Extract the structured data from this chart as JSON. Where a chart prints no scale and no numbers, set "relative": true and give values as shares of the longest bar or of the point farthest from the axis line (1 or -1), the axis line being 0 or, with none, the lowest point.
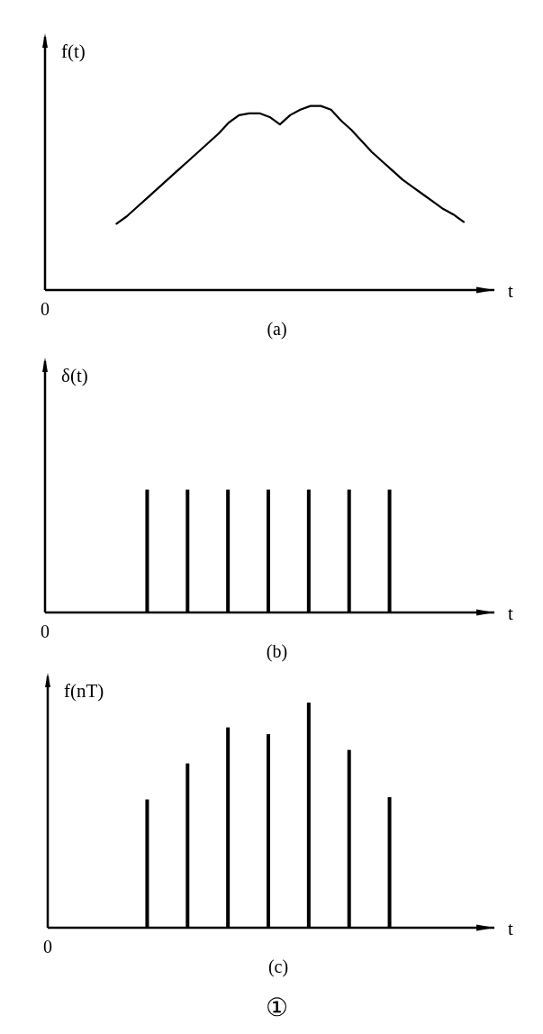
{
  "chart_data": [
    {
      "type": "line",
      "ylabel": "f(t)",
      "xlabel": "t",
      "annotations": [
        "0",
        "(a)"
      ],
      "relative": true,
      "color": "#000000",
      "categories": [
        null,
        null,
        null,
        null,
        null,
        null,
        null,
        null,
        null,
        null,
        null,
        null,
        null,
        null,
        null,
        null,
        null,
        null,
        null,
        null,
        null,
        null,
        null,
        null,
        null,
        null,
        null,
        null,
        null,
        null,
        null,
        null,
        null,
        null,
        null,
        null,
        null,
        null,
        null,
        null,
        null,
        null,
        null,
        null,
        null
      ],
      "values": [
        null,
        null,
        null,
        null,
        null,
        null,
        null,
        0.36,
        0.4,
        0.45,
        0.5,
        0.55,
        0.6,
        0.65,
        0.7,
        0.75,
        0.8,
        0.85,
        0.91,
        0.95,
        0.96,
        0.96,
        0.94,
        0.9,
        0.95,
        0.98,
        1,
        1,
        0.98,
        0.92,
        0.87,
        0.81,
        0.75,
        0.7,
        0.65,
        0.6,
        0.56,
        0.52,
        0.48,
        0.44,
        0.41,
        0.37,
        null,
        null,
        null
      ]
    },
    {
      "type": "bar",
      "ylabel": "δ(t)",
      "xlabel": "t",
      "annotations": [
        "0",
        "(b)"
      ],
      "relative": true,
      "color": "#000000",
      "categories": [
        null,
        null,
        null,
        null,
        null,
        null,
        null
      ],
      "values": [
        1,
        1,
        1,
        1,
        1,
        1,
        1
      ]
    },
    {
      "type": "bar",
      "ylabel": "f(nT)",
      "xlabel": "t",
      "annotations": [
        "0",
        "(c)",
        "①"
      ],
      "relative": true,
      "color": "#000000",
      "categories": [
        null,
        null,
        null,
        null,
        null,
        null,
        null
      ],
      "values": [
        0.57,
        0.73,
        0.89,
        0.86,
        1,
        0.79,
        0.58
      ]
    }
  ]
}
